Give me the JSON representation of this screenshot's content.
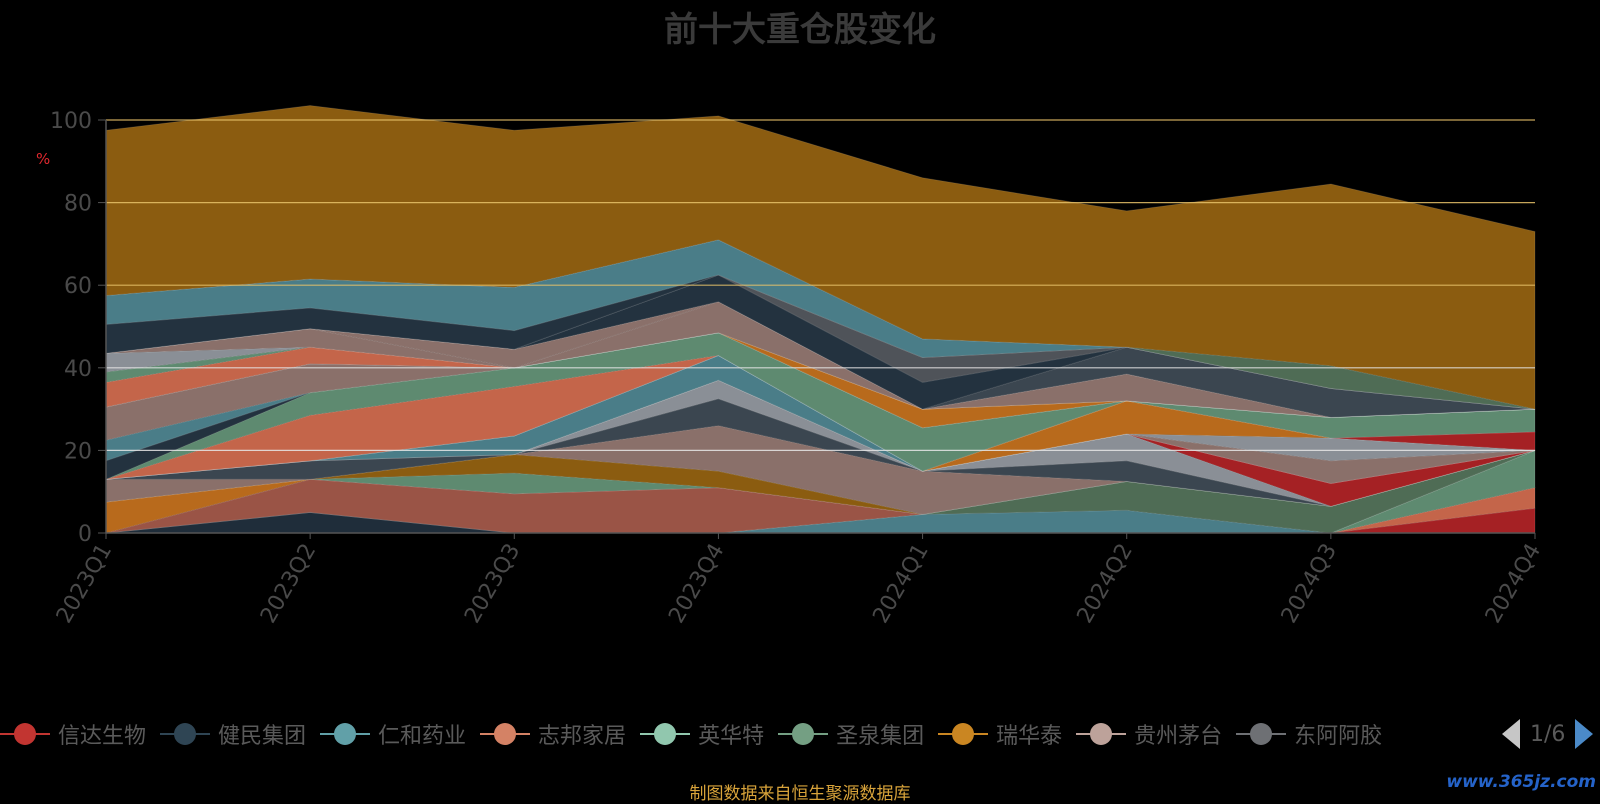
{
  "title": "前十大重仓股变化",
  "footer_note": "制图数据来自恒生聚源数据库",
  "watermark": "www.365jz.com",
  "legend_pager": {
    "label": "1/6"
  },
  "chart_data": {
    "type": "area",
    "stacked": true,
    "ylabel": "%",
    "ylim": [
      0,
      100
    ],
    "yticks": [
      0,
      20,
      40,
      60,
      80,
      100
    ],
    "grid": true,
    "legend_position": "bottom",
    "x": [
      "2023Q1",
      "2023Q2",
      "2023Q3",
      "2023Q4",
      "2024Q1",
      "2024Q2",
      "2024Q3",
      "2024Q4"
    ],
    "series": [
      {
        "name": "",
        "color": "#a52124",
        "values": [
          0,
          0,
          0,
          0,
          0,
          0,
          0,
          6
        ]
      },
      {
        "name": "",
        "color": "#c4654a",
        "values": [
          0,
          0,
          0,
          0,
          0,
          0,
          0,
          5
        ]
      },
      {
        "name": "",
        "color": "#5e8a70",
        "values": [
          0,
          0,
          0,
          0,
          0,
          0,
          0,
          9
        ]
      },
      {
        "name": "",
        "color": "#1f2d3a",
        "values": [
          0,
          5,
          0,
          0,
          0,
          0,
          0,
          0
        ]
      },
      {
        "name": "",
        "color": "#4a7d88",
        "values": [
          0,
          0,
          0,
          0,
          4.5,
          5.5,
          0,
          0
        ]
      },
      {
        "name": "",
        "color": "#4f6c55",
        "values": [
          0,
          0,
          0,
          0,
          0,
          7,
          6.5,
          0
        ]
      },
      {
        "name": "",
        "color": "#9a5446",
        "values": [
          0,
          8,
          9.5,
          11,
          0,
          0,
          0,
          0
        ]
      },
      {
        "name": "",
        "color": "#b86a1c",
        "values": [
          7.5,
          0,
          0,
          0,
          0,
          0,
          0,
          0
        ]
      },
      {
        "name": "",
        "color": "#5e8a70",
        "values": [
          0,
          0,
          5,
          0,
          0,
          0,
          0,
          0
        ]
      },
      {
        "name": "",
        "color": "#8b5c10",
        "values": [
          0,
          0,
          4.5,
          4,
          0,
          0,
          0,
          0
        ]
      },
      {
        "name": "",
        "color": "#8a706a",
        "values": [
          5.5,
          0,
          0,
          11,
          10.5,
          0,
          0,
          0
        ]
      },
      {
        "name": "",
        "color": "#3b4650",
        "values": [
          0,
          4.5,
          0,
          6.5,
          0,
          5,
          0,
          0
        ]
      },
      {
        "name": "",
        "color": "#8a8f96",
        "values": [
          0,
          0,
          0,
          4.5,
          0,
          6.5,
          0,
          0
        ]
      },
      {
        "name": "",
        "color": "#a52124",
        "values": [
          0,
          0,
          0,
          0,
          0,
          0,
          5.5,
          0
        ]
      },
      {
        "name": "",
        "color": "#8b5c10",
        "values": [
          0,
          0,
          0,
          0,
          0,
          0,
          0,
          0
        ]
      },
      {
        "name": "",
        "color": "#23323f",
        "values": [
          0,
          0,
          0,
          0,
          0,
          0,
          0,
          0
        ]
      },
      {
        "name": "",
        "color": "#4a7d88",
        "values": [
          0,
          0,
          4.5,
          6,
          0,
          0,
          0,
          0
        ]
      },
      {
        "name": "",
        "color": "#8a706a",
        "values": [
          0,
          0,
          0,
          0,
          0,
          0,
          5.5,
          0
        ]
      },
      {
        "name": "",
        "color": "#8a8f96",
        "values": [
          0,
          0,
          0,
          0,
          0,
          0,
          5.5,
          0
        ]
      },
      {
        "name": "",
        "color": "#b86a1c",
        "values": [
          0,
          0,
          0,
          0,
          0,
          8,
          0,
          0
        ]
      },
      {
        "name": "",
        "color": "#a52124",
        "values": [
          0,
          0,
          0,
          0,
          0,
          0,
          0,
          4.5
        ]
      },
      {
        "name": "",
        "color": "#c4654a",
        "values": [
          0,
          11,
          12,
          0,
          0,
          0,
          0,
          0
        ]
      },
      {
        "name": "",
        "color": "#5e8a70",
        "values": [
          0,
          5.5,
          4.5,
          5.5,
          10.5,
          0,
          5,
          5.5
        ]
      },
      {
        "name": "",
        "color": "#23323f",
        "values": [
          4.5,
          0,
          0,
          0,
          0,
          0,
          0,
          0
        ]
      },
      {
        "name": "",
        "color": "#4a7d88",
        "values": [
          5,
          0,
          0,
          0,
          0,
          0,
          0,
          0
        ]
      },
      {
        "name": "",
        "color": "#8a706a",
        "values": [
          8,
          7,
          0,
          0,
          0,
          0,
          0,
          0
        ]
      },
      {
        "name": "",
        "color": "#b86a1c",
        "values": [
          0,
          0,
          0,
          0,
          4.5,
          0,
          0,
          0
        ]
      },
      {
        "name": "",
        "color": "#a52124",
        "values": [
          0,
          0,
          0,
          0,
          0,
          0,
          0,
          0
        ]
      },
      {
        "name": "",
        "color": "#c4654a",
        "values": [
          6,
          4,
          0,
          0,
          0,
          0,
          0,
          0
        ]
      },
      {
        "name": "",
        "color": "#5e8a70",
        "values": [
          2.5,
          0,
          0,
          0,
          0,
          0,
          0,
          0
        ]
      },
      {
        "name": "",
        "color": "#8a8f96",
        "values": [
          4.5,
          0,
          0,
          0,
          0,
          0,
          0,
          0
        ]
      },
      {
        "name": "",
        "color": "#8a706a",
        "values": [
          0,
          4.5,
          0,
          7.5,
          0,
          6.5,
          0,
          0
        ]
      },
      {
        "name": "",
        "color": "#8a706a",
        "values": [
          0,
          0,
          4.5,
          0,
          0,
          0,
          0,
          0
        ]
      },
      {
        "name": "",
        "color": "#3b4650",
        "values": [
          0,
          0,
          0,
          0,
          0,
          6.5,
          7,
          0
        ]
      },
      {
        "name": "",
        "color": "#23323f",
        "values": [
          0,
          0,
          0,
          6.5,
          6.5,
          0,
          0,
          0
        ]
      },
      {
        "name": "",
        "color": "#4f5359",
        "values": [
          0,
          0,
          0,
          0,
          6,
          0,
          0,
          0
        ]
      },
      {
        "name": "",
        "color": "#23323f",
        "values": [
          7,
          5,
          4.5,
          0,
          0,
          0,
          0,
          0
        ]
      },
      {
        "name": "",
        "color": "#4a7d88",
        "values": [
          7,
          7,
          10.5,
          8.5,
          4.5,
          0,
          0,
          0
        ]
      },
      {
        "name": "",
        "color": "#4f6c55",
        "values": [
          0,
          0,
          0,
          0,
          0,
          0,
          5.5,
          0
        ]
      },
      {
        "name": "",
        "color": "#8b5c10",
        "values": [
          40,
          42,
          38,
          30,
          39,
          33,
          44,
          43
        ]
      }
    ]
  },
  "legend": [
    {
      "label": "信达生物",
      "color": "#c23531"
    },
    {
      "label": "健民集团",
      "color": "#2f4554"
    },
    {
      "label": "仁和药业",
      "color": "#61a0a8"
    },
    {
      "label": "志邦家居",
      "color": "#d48265"
    },
    {
      "label": "英华特",
      "color": "#91c7ae"
    },
    {
      "label": "圣泉集团",
      "color": "#749f83"
    },
    {
      "label": "瑞华泰",
      "color": "#ca8622"
    },
    {
      "label": "贵州茅台",
      "color": "#bda29a"
    },
    {
      "label": "东阿阿胶",
      "color": "#6e7074"
    }
  ]
}
